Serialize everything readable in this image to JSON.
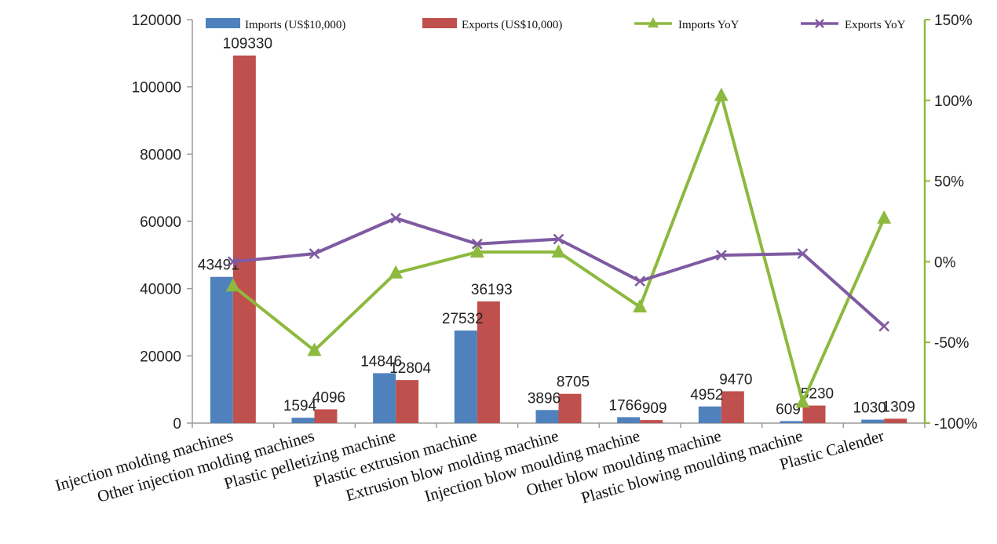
{
  "chart_data": {
    "type": "bar",
    "categories": [
      "Injection molding machines",
      "Other injection molding machines",
      "Plastic pelletizing machine",
      "Plastic extrusion machine",
      "Extrusion blow molding machine",
      "Injection blow moulding machine",
      "Other blow moulding machine",
      "Plastic blowing moulding machine",
      "Plastic Calender"
    ],
    "bar_series": [
      {
        "name": "Imports (US$10,000)",
        "color": "#4f81bd",
        "values": [
          43491,
          1594,
          14846,
          27532,
          3896,
          1766,
          4952,
          609,
          1030
        ],
        "labels": [
          "43491",
          "1594",
          "14846",
          "27532",
          "3896",
          "1766",
          "4952",
          "609",
          "1030"
        ]
      },
      {
        "name": "Exports (US$10,000)",
        "color": "#c0504d",
        "values": [
          109330,
          4096,
          12804,
          36193,
          8705,
          909,
          9470,
          5230,
          1309
        ],
        "labels": [
          "109330",
          "4096",
          "12804",
          "36193",
          "8705",
          "909",
          "9470",
          "5230",
          "1309"
        ]
      }
    ],
    "line_series": [
      {
        "name": "Imports YoY",
        "color": "#8db93e",
        "marker": "triangle",
        "values": [
          -15,
          -55,
          -7,
          6,
          6,
          -28,
          103,
          -87,
          27
        ]
      },
      {
        "name": "Exports YoY",
        "color": "#7f5aa2",
        "marker": "x",
        "values": [
          0,
          5,
          27,
          11,
          14,
          -12,
          4,
          5,
          -40
        ]
      }
    ],
    "y_left": {
      "min": 0,
      "max": 120000,
      "ticks": [
        "0",
        "20000",
        "40000",
        "60000",
        "80000",
        "100000",
        "120000"
      ]
    },
    "y_right": {
      "min": -100,
      "max": 150,
      "ticks": [
        "-100%",
        "-50%",
        "0%",
        "50%",
        "100%",
        "150%"
      ]
    },
    "legend_position": "top",
    "grid": false
  }
}
